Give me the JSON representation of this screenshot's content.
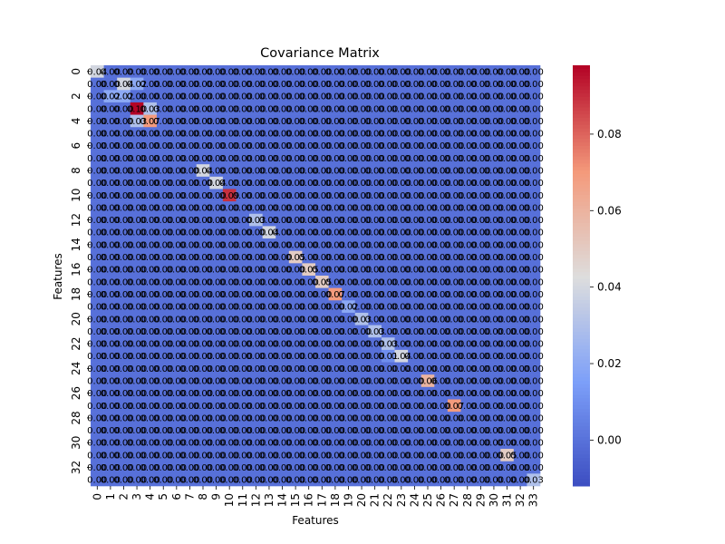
{
  "chart_data": {
    "type": "heatmap",
    "title": "Covariance Matrix",
    "xlabel": "Features",
    "ylabel": "Features",
    "n": 34,
    "x_ticks": [
      "0",
      "1",
      "2",
      "3",
      "4",
      "5",
      "6",
      "7",
      "8",
      "9",
      "10",
      "11",
      "12",
      "13",
      "14",
      "15",
      "16",
      "17",
      "18",
      "19",
      "20",
      "21",
      "22",
      "23",
      "24",
      "25",
      "26",
      "27",
      "28",
      "29",
      "30",
      "31",
      "32",
      "33"
    ],
    "y_ticks": [
      "0",
      "2",
      "4",
      "6",
      "8",
      "10",
      "12",
      "14",
      "16",
      "18",
      "20",
      "22",
      "24",
      "26",
      "28",
      "30",
      "32"
    ],
    "y_tick_indices": [
      0,
      2,
      4,
      6,
      8,
      10,
      12,
      14,
      16,
      18,
      20,
      22,
      24,
      26,
      28,
      30,
      32
    ],
    "diagonal": [
      0.04,
      0.0,
      0.02,
      0.1,
      0.07,
      0.0,
      0.0,
      0.0,
      0.04,
      0.04,
      0.09,
      0.0,
      0.03,
      0.04,
      0.0,
      0.05,
      0.05,
      0.05,
      0.07,
      0.02,
      0.03,
      0.03,
      0.03,
      0.04,
      0.0,
      0.06,
      0.0,
      0.07,
      0.0,
      0.0,
      0.0,
      0.05,
      0.0,
      0.03
    ],
    "diagonal_labels": [
      "0.04",
      "0.00",
      "0.02",
      "0.10",
      "0.07",
      "0.00",
      "0.00",
      "0.00",
      "0.04",
      "0.04",
      "0.09",
      "0.00",
      "0.03",
      "0.04",
      "0.00",
      "0.05",
      "0.05",
      "0.05",
      "0.07",
      "0.02",
      "0.03",
      "0.03",
      "0.03",
      "0.04",
      "0.00",
      "0.06",
      "0.00",
      "0.07",
      "0.00",
      "0.00",
      "0.00",
      "0.05",
      "0.00",
      "0.03"
    ],
    "notable_offdiagonal": [
      {
        "row": 1,
        "col": 2,
        "value": 0.04,
        "label": "0.04"
      },
      {
        "row": 2,
        "col": 1,
        "value": 0.02,
        "label": "0.02"
      },
      {
        "row": 3,
        "col": 4,
        "value": 0.03,
        "label": "0.03"
      },
      {
        "row": 4,
        "col": 3,
        "value": 0.03,
        "label": "0.03"
      },
      {
        "row": 1,
        "col": 3,
        "value": 0.02,
        "label": "0.02"
      },
      {
        "row": 23,
        "col": 22,
        "value": 0.01,
        "label": "0.01"
      }
    ],
    "offdiag_label": "0.00",
    "colorbar": {
      "vmin": -0.012,
      "vmax": 0.098,
      "ticks": [
        0.0,
        0.02,
        0.04,
        0.06,
        0.08
      ],
      "tick_labels": [
        "0.00",
        "0.02",
        "0.04",
        "0.06",
        "0.08"
      ],
      "colormap": "coolwarm"
    }
  }
}
